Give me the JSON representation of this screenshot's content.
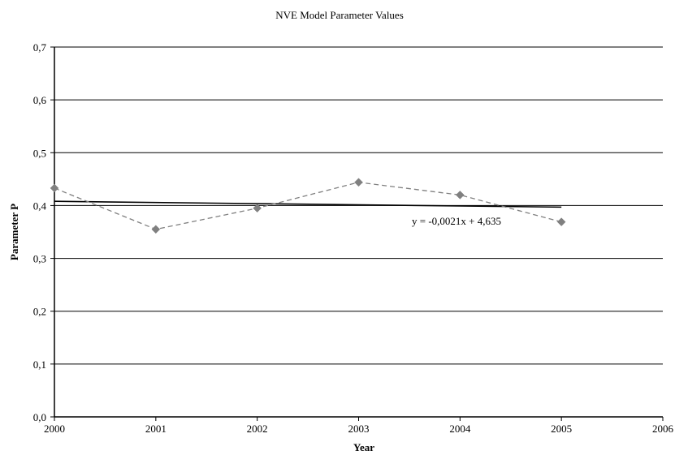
{
  "chart_data": {
    "type": "line",
    "title": "NVE Model Parameter Values",
    "xlabel": "Year",
    "ylabel": "Parameter P",
    "xlim": [
      2000,
      2006
    ],
    "ylim": [
      0,
      0.7
    ],
    "x_ticks": [
      "2000",
      "2001",
      "2002",
      "2003",
      "2004",
      "2005",
      "2006"
    ],
    "y_ticks": [
      "0,0",
      "0,1",
      "0,2",
      "0,3",
      "0,4",
      "0,5",
      "0,6",
      "0,7"
    ],
    "grid": true,
    "series": [
      {
        "x": [
          2000,
          2001,
          2002,
          2003,
          2004,
          2005
        ],
        "values": [
          0.433,
          0.355,
          0.395,
          0.444,
          0.42,
          0.369
        ],
        "color": "#808080",
        "line_style": "dashed",
        "marker": "diamond"
      }
    ],
    "trendline": {
      "x": [
        2000,
        2005
      ],
      "values": [
        0.408,
        0.397
      ],
      "color": "#000000",
      "label": "y = -0,0021x + 4,635"
    }
  }
}
